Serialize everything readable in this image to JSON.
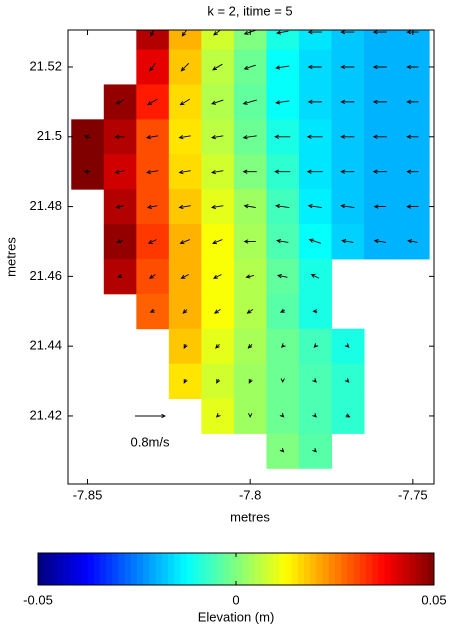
{
  "chart_data": {
    "type": "quiver-field",
    "title": "k = 2, itime = 5",
    "xlabel": "metres",
    "ylabel": "metres",
    "xlim": [
      -7.856,
      -7.7435
    ],
    "ylim": [
      21.4005,
      21.5306
    ],
    "xticks": [
      -7.85,
      -7.8,
      -7.75
    ],
    "yticks": [
      21.42,
      21.44,
      21.46,
      21.48,
      21.5,
      21.52
    ],
    "grid_x": [
      -7.85,
      -7.84,
      -7.83,
      -7.82,
      -7.81,
      -7.8,
      -7.79,
      -7.78,
      -7.77,
      -7.76,
      -7.75
    ],
    "grid_y": [
      21.53,
      21.52,
      21.51,
      21.5,
      21.49,
      21.48,
      21.47,
      21.46,
      21.45,
      21.44,
      21.43,
      21.42,
      21.41
    ],
    "elevation": [
      [
        null,
        null,
        0.045,
        0.02,
        0.008,
        0.0,
        -0.01,
        -0.015,
        -0.018,
        -0.02,
        -0.02
      ],
      [
        null,
        null,
        0.04,
        0.018,
        0.006,
        -0.002,
        -0.012,
        -0.016,
        -0.018,
        -0.02,
        -0.02
      ],
      [
        null,
        0.048,
        0.035,
        0.016,
        0.005,
        -0.003,
        -0.012,
        -0.016,
        -0.018,
        -0.02,
        -0.02
      ],
      [
        0.05,
        0.045,
        0.03,
        0.015,
        0.006,
        -0.002,
        -0.01,
        -0.015,
        -0.018,
        -0.02,
        -0.02
      ],
      [
        0.05,
        0.042,
        0.03,
        0.016,
        0.008,
        0.0,
        -0.008,
        -0.015,
        -0.018,
        -0.02,
        -0.02
      ],
      [
        null,
        0.045,
        0.03,
        0.018,
        0.01,
        0.003,
        -0.006,
        -0.014,
        -0.018,
        -0.02,
        -0.02
      ],
      [
        null,
        0.048,
        0.032,
        0.02,
        0.012,
        0.004,
        -0.005,
        -0.012,
        -0.017,
        -0.02,
        -0.02
      ],
      [
        null,
        0.045,
        0.03,
        0.02,
        0.012,
        0.005,
        -0.003,
        -0.01,
        null,
        null,
        null
      ],
      [
        null,
        null,
        0.028,
        0.02,
        0.012,
        0.005,
        -0.004,
        -0.01,
        null,
        null,
        null
      ],
      [
        null,
        null,
        null,
        0.018,
        0.01,
        0.004,
        -0.002,
        -0.006,
        -0.01,
        null,
        null
      ],
      [
        null,
        null,
        null,
        0.015,
        0.008,
        0.003,
        -0.002,
        -0.005,
        -0.008,
        null,
        null
      ],
      [
        null,
        null,
        null,
        null,
        0.01,
        0.003,
        -0.002,
        -0.005,
        -0.008,
        null,
        null
      ],
      [
        null,
        null,
        null,
        null,
        null,
        null,
        0.0,
        -0.004,
        null,
        null,
        null
      ]
    ],
    "u": [
      [
        null,
        null,
        -0.1,
        -0.15,
        -0.2,
        -0.3,
        -0.3,
        -0.35,
        -0.35,
        -0.35,
        -0.3
      ],
      [
        null,
        null,
        -0.15,
        -0.2,
        -0.25,
        -0.3,
        -0.35,
        -0.35,
        -0.35,
        -0.35,
        -0.3
      ],
      [
        null,
        -0.2,
        -0.25,
        -0.25,
        -0.3,
        -0.35,
        -0.35,
        -0.35,
        -0.35,
        -0.35,
        -0.3
      ],
      [
        -0.15,
        -0.25,
        -0.3,
        -0.3,
        -0.3,
        -0.35,
        -0.4,
        -0.4,
        -0.35,
        -0.35,
        -0.3
      ],
      [
        -0.15,
        -0.25,
        -0.3,
        -0.3,
        -0.3,
        -0.35,
        -0.4,
        -0.4,
        -0.35,
        -0.35,
        -0.3
      ],
      [
        null,
        -0.2,
        -0.25,
        -0.3,
        -0.3,
        -0.3,
        -0.35,
        -0.35,
        -0.35,
        -0.3,
        -0.3
      ],
      [
        null,
        -0.15,
        -0.2,
        -0.25,
        -0.25,
        -0.3,
        -0.3,
        -0.3,
        -0.3,
        -0.3,
        -0.25
      ],
      [
        null,
        -0.1,
        -0.15,
        -0.2,
        -0.2,
        -0.2,
        -0.25,
        -0.2,
        null,
        null,
        null
      ],
      [
        null,
        null,
        -0.1,
        -0.1,
        -0.15,
        -0.15,
        -0.1,
        -0.1,
        null,
        null,
        null
      ],
      [
        null,
        null,
        null,
        -0.05,
        -0.1,
        -0.1,
        -0.05,
        -0.05,
        0.05,
        null,
        null
      ],
      [
        null,
        null,
        null,
        -0.05,
        -0.05,
        -0.05,
        0.0,
        0.05,
        0.05,
        null,
        null
      ],
      [
        null,
        null,
        null,
        null,
        -0.05,
        0.0,
        0.05,
        0.05,
        0.1,
        null,
        null
      ],
      [
        null,
        null,
        null,
        null,
        null,
        null,
        0.05,
        0.05,
        null,
        null,
        null
      ]
    ],
    "v": [
      [
        null,
        null,
        -0.2,
        -0.2,
        -0.15,
        -0.1,
        -0.05,
        0,
        0,
        0,
        0
      ],
      [
        null,
        null,
        -0.2,
        -0.2,
        -0.15,
        -0.1,
        -0.05,
        0,
        0,
        0,
        0
      ],
      [
        null,
        -0.1,
        -0.15,
        -0.15,
        -0.1,
        -0.1,
        -0.05,
        0,
        0,
        0,
        0
      ],
      [
        0.05,
        0,
        -0.05,
        -0.05,
        -0.05,
        -0.05,
        0,
        0,
        0,
        0,
        0
      ],
      [
        0,
        -0.05,
        -0.05,
        -0.05,
        -0.05,
        0,
        0,
        0,
        0,
        0,
        0
      ],
      [
        null,
        -0.05,
        -0.05,
        -0.05,
        -0.05,
        0.05,
        0.05,
        0.05,
        0.05,
        0,
        0
      ],
      [
        null,
        -0.05,
        -0.1,
        -0.1,
        -0.1,
        0,
        0.05,
        0.1,
        0.05,
        0.05,
        0.05
      ],
      [
        null,
        -0.05,
        -0.1,
        -0.1,
        -0.1,
        -0.05,
        0.05,
        0.1,
        null,
        null,
        null
      ],
      [
        null,
        null,
        -0.05,
        -0.1,
        -0.1,
        -0.1,
        -0.05,
        0,
        null,
        null,
        null
      ],
      [
        null,
        null,
        null,
        -0.1,
        -0.1,
        -0.1,
        -0.05,
        -0.05,
        -0.05,
        null,
        null
      ],
      [
        null,
        null,
        null,
        -0.1,
        -0.1,
        -0.1,
        -0.05,
        -0.05,
        -0.05,
        null,
        null
      ],
      [
        null,
        null,
        null,
        null,
        -0.05,
        -0.05,
        -0.05,
        -0.05,
        -0.05,
        null,
        null
      ],
      [
        null,
        null,
        null,
        null,
        null,
        null,
        -0.05,
        -0.05,
        null,
        null,
        null
      ]
    ],
    "reference_vector": 0.8,
    "reference_label": "0.8m/s",
    "colorbar": {
      "label": "Elevation (m)",
      "clim": [
        -0.05,
        0.05
      ],
      "ticks": [
        -0.05,
        0,
        0.05
      ],
      "colormap": "jet"
    }
  }
}
